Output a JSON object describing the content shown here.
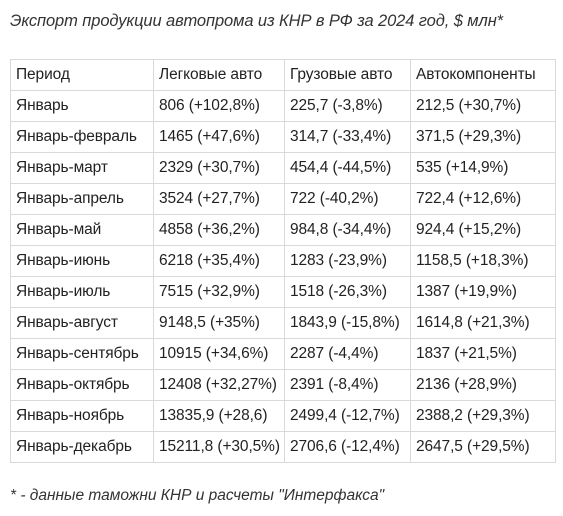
{
  "title": "Экспорт продукции автопрома из КНР в РФ за 2024 год, $ млн*",
  "table": {
    "headers": [
      "Период",
      "Легковые авто",
      "Грузовые авто",
      "Автокомпоненты"
    ],
    "rows": [
      [
        "Январь",
        "806 (+102,8%)",
        "225,7 (-3,8%)",
        "212,5 (+30,7%)"
      ],
      [
        "Январь-февраль",
        "1465 (+47,6%)",
        "314,7 (-33,4%)",
        "371,5 (+29,3%)"
      ],
      [
        "Январь-март",
        "2329 (+30,7%)",
        "454,4 (-44,5%)",
        "535 (+14,9%)"
      ],
      [
        "Январь-апрель",
        "3524 (+27,7%)",
        "722 (-40,2%)",
        "722,4 (+12,6%)"
      ],
      [
        "Январь-май",
        "4858 (+36,2%)",
        "984,8 (-34,4%)",
        "924,4 (+15,2%)"
      ],
      [
        "Январь-июнь",
        "6218 (+35,4%)",
        "1283 (-23,9%)",
        "1158,5 (+18,3%)"
      ],
      [
        "Январь-июль",
        "7515 (+32,9%)",
        "1518 (-26,3%)",
        "1387 (+19,9%)"
      ],
      [
        "Январь-август",
        "9148,5 (+35%)",
        "1843,9 (-15,8%)",
        "1614,8 (+21,3%)"
      ],
      [
        "Январь-сентябрь",
        "10915 (+34,6%)",
        "2287 (-4,4%)",
        "1837 (+21,5%)"
      ],
      [
        "Январь-октябрь",
        "12408 (+32,27%)",
        "2391 (-8,4%)",
        "2136 (+28,9%)"
      ],
      [
        "Январь-ноябрь",
        "13835,9 (+28,6)",
        "2499,4 (-12,7%)",
        "2388,2 (+29,3%)"
      ],
      [
        "Январь-декабрь",
        "15211,8 (+30,5%)",
        "2706,6 (-12,4%)",
        "2647,5 (+29,5%)"
      ]
    ]
  },
  "footnote": "* - данные таможни КНР и расчеты \"Интерфакса\""
}
